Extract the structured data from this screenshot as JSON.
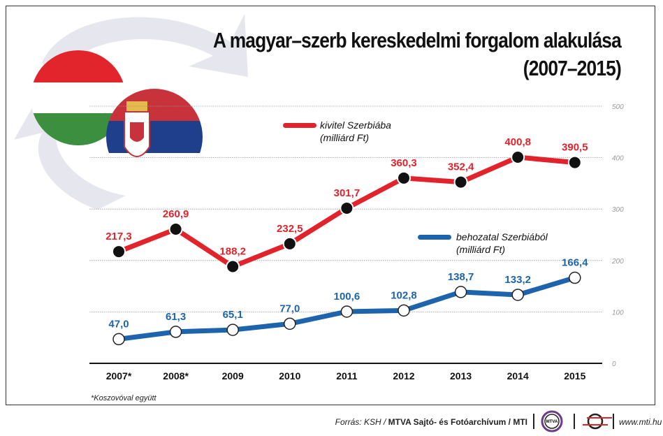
{
  "chart_data": {
    "type": "line",
    "title": "A magyar–szerb kereskedelmi forgalom alakulása",
    "subtitle": "(2007–2015)",
    "categories": [
      "2007*",
      "2008*",
      "2009",
      "2010",
      "2011",
      "2012",
      "2013",
      "2014",
      "2015"
    ],
    "series": [
      {
        "name": "kivitel Szerbiába",
        "unit": "(milliárd Ft)",
        "color": "#e1232b",
        "values": [
          217.3,
          260.9,
          188.2,
          232.5,
          301.7,
          360.3,
          352.4,
          400.8,
          390.5
        ],
        "labels": [
          "217,3",
          "260,9",
          "188,2",
          "232,5",
          "301,7",
          "360,3",
          "352,4",
          "400,8",
          "390,5"
        ]
      },
      {
        "name": "behozatal Szerbiából",
        "unit": "(milliárd Ft)",
        "color": "#1d64ad",
        "values": [
          47.0,
          61.3,
          65.1,
          77.0,
          100.6,
          102.8,
          138.7,
          133.2,
          166.4
        ],
        "labels": [
          "47,0",
          "61,3",
          "65,1",
          "77,0",
          "100,6",
          "102,8",
          "138,7",
          "133,2",
          "166,4"
        ]
      }
    ],
    "yticks": [
      0,
      100,
      200,
      300,
      400,
      500
    ],
    "ylim": [
      0,
      500
    ],
    "grid": true,
    "axis_position": "right"
  },
  "footnote": "*Koszovóval együtt",
  "source": {
    "prefix": "Forrás: KSH / ",
    "bold": "MTVA Sajtó- és Fotóarchívum / MTI",
    "url": "www.mti.hu",
    "logo1": "MTVA"
  }
}
